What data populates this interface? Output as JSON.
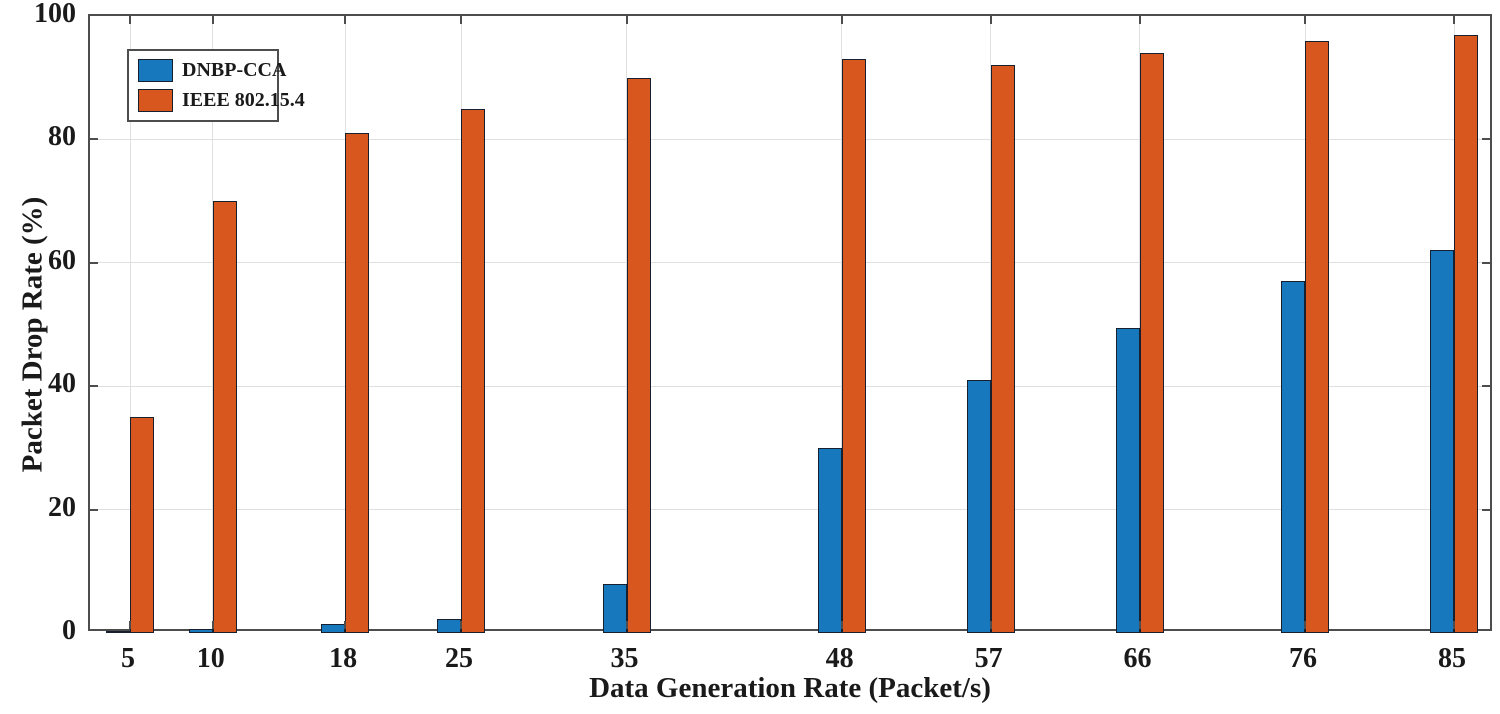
{
  "figure": {
    "y_axis_label": "Packet Drop Rate (%)",
    "x_axis_label": "Data Generation Rate (Packet/s)"
  },
  "legend": {
    "items": [
      {
        "label": "DNBP-CCA",
        "color": "#1878be"
      },
      {
        "label": "IEEE 802.15.4",
        "color": "#d8571e"
      }
    ]
  },
  "chart_data": {
    "type": "bar",
    "title": "",
    "xlabel": "Data Generation Rate (Packet/s)",
    "ylabel": "Packet Drop Rate (%)",
    "x": [
      5,
      10,
      18,
      25,
      35,
      48,
      57,
      66,
      76,
      85
    ],
    "x_tick_labels": [
      "5",
      "10",
      "18",
      "25",
      "35",
      "48",
      "57",
      "66",
      "76",
      "85"
    ],
    "y_ticks": [
      0,
      20,
      40,
      60,
      80,
      100
    ],
    "ylim": [
      0,
      100
    ],
    "x_axis_scale": "linear",
    "grid": true,
    "legend_position": "upper-left-inside",
    "series": [
      {
        "name": "DNBP-CCA",
        "color": "#1878be",
        "values": [
          0.4,
          0.7,
          1.5,
          2.2,
          8,
          30,
          41,
          49.5,
          57,
          62
        ]
      },
      {
        "name": "IEEE 802.15.4",
        "color": "#d8571e",
        "values": [
          35,
          70,
          81,
          85,
          90,
          93,
          92,
          94,
          96,
          97
        ]
      }
    ]
  }
}
